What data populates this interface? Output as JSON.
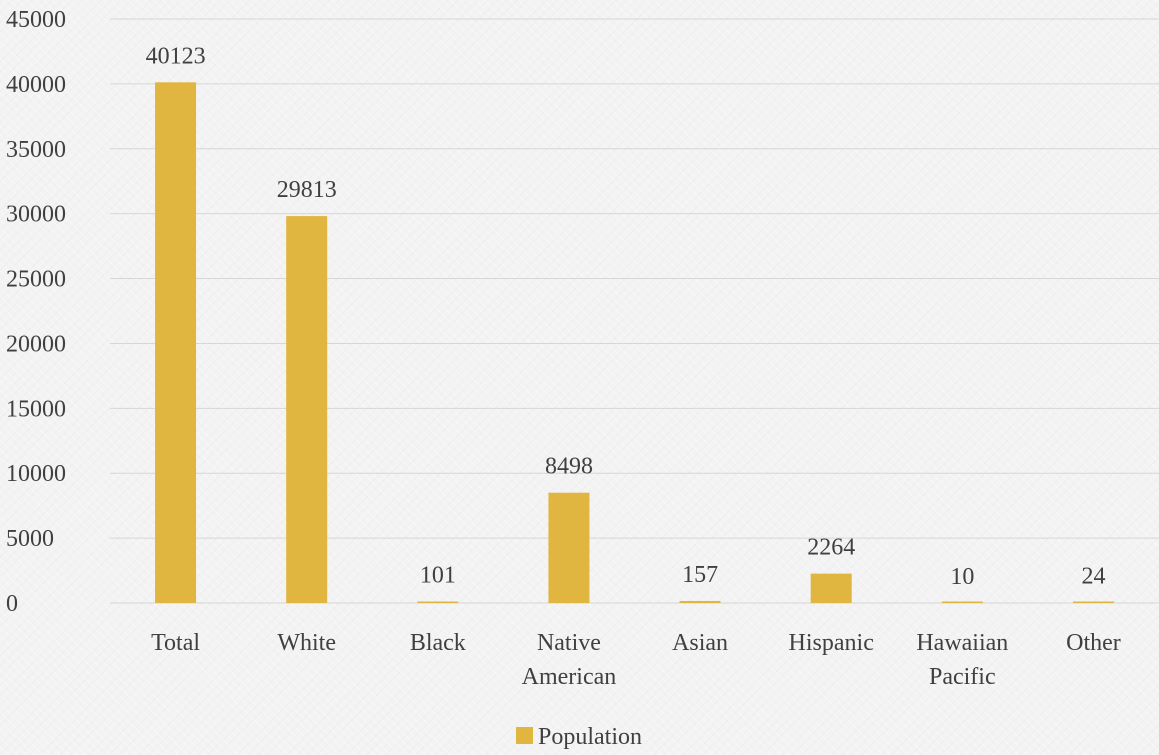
{
  "chart_data": {
    "type": "bar",
    "categories": [
      [
        "Total"
      ],
      [
        "White"
      ],
      [
        "Black"
      ],
      [
        "Native",
        "American"
      ],
      [
        "Asian"
      ],
      [
        "Hispanic"
      ],
      [
        "Hawaiian",
        "Pacific"
      ],
      [
        "Other"
      ]
    ],
    "series": [
      {
        "name": "Population",
        "values": [
          40123,
          29813,
          101,
          8498,
          157,
          2264,
          10,
          24
        ],
        "color": "#e0b540"
      }
    ],
    "yticks": [
      0,
      5000,
      10000,
      15000,
      20000,
      25000,
      30000,
      35000,
      40000,
      45000
    ],
    "ylim": [
      0,
      45000
    ],
    "grid": true,
    "data_labels": true,
    "legend_position": "bottom"
  }
}
